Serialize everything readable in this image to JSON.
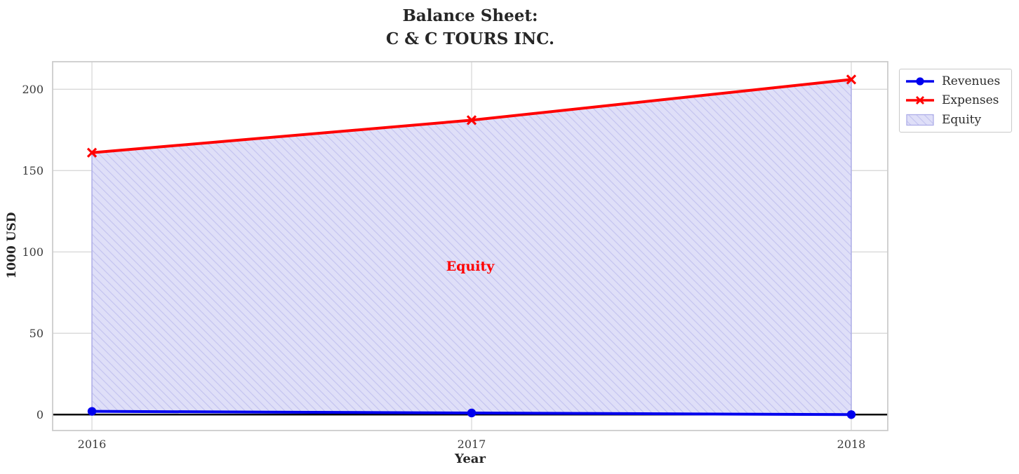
{
  "title": {
    "line1": "Balance Sheet:",
    "line2": "C & C TOURS INC."
  },
  "axes": {
    "xlabel": "Year",
    "ylabel": "1000 USD"
  },
  "annotation": {
    "text": "Equity",
    "color": "#ff0000"
  },
  "legend": {
    "position": "outside-upper-right",
    "items": [
      {
        "label": "Revenues",
        "type": "line-circle-marker",
        "color": "#0000ee"
      },
      {
        "label": "Expenses",
        "type": "line-x-marker",
        "color": "#ff0000"
      },
      {
        "label": "Equity",
        "type": "hatched-patch",
        "color": "#dedef7"
      }
    ]
  },
  "colors": {
    "revenues": "#0000ee",
    "expenses": "#ff0000",
    "equity_fill": "#dfdff8",
    "equity_hatch": "#c2c2ef",
    "equity_edge": "#aeaee8",
    "baseline": "#000000",
    "grid": "#d9d9d9",
    "spine": "#cccccc",
    "tick_text": "#3a3a3a"
  },
  "chart_data": {
    "type": "line",
    "title": "Balance Sheet: C & C TOURS INC.",
    "xlabel": "Year",
    "ylabel": "1000 USD",
    "x": [
      2016,
      2017,
      2018
    ],
    "x_ticklabels": [
      "2016",
      "2017",
      "2018"
    ],
    "y_ticks": [
      0,
      50,
      100,
      150,
      200
    ],
    "xlim": [
      2015.9,
      2018.1
    ],
    "ylim": [
      -10,
      217
    ],
    "grid": true,
    "legend_position": "outside-upper-right",
    "series": [
      {
        "name": "Revenues",
        "values": [
          2,
          1,
          0
        ],
        "color": "#0000ee",
        "marker": "circle",
        "linewidth": 4
      },
      {
        "name": "Expenses",
        "values": [
          161,
          181,
          206
        ],
        "color": "#ff0000",
        "marker": "x",
        "linewidth": 4
      }
    ],
    "area": {
      "name": "Equity",
      "between": [
        "Revenues",
        "Expenses"
      ],
      "fill": "#dfdff8",
      "hatch": "/",
      "hatch_color": "#c2c2ef",
      "edge_color": "#aeaee8",
      "label_annotation": "Equity"
    },
    "baseline": {
      "y": 0,
      "color": "#000000",
      "linewidth": 2.5
    }
  }
}
